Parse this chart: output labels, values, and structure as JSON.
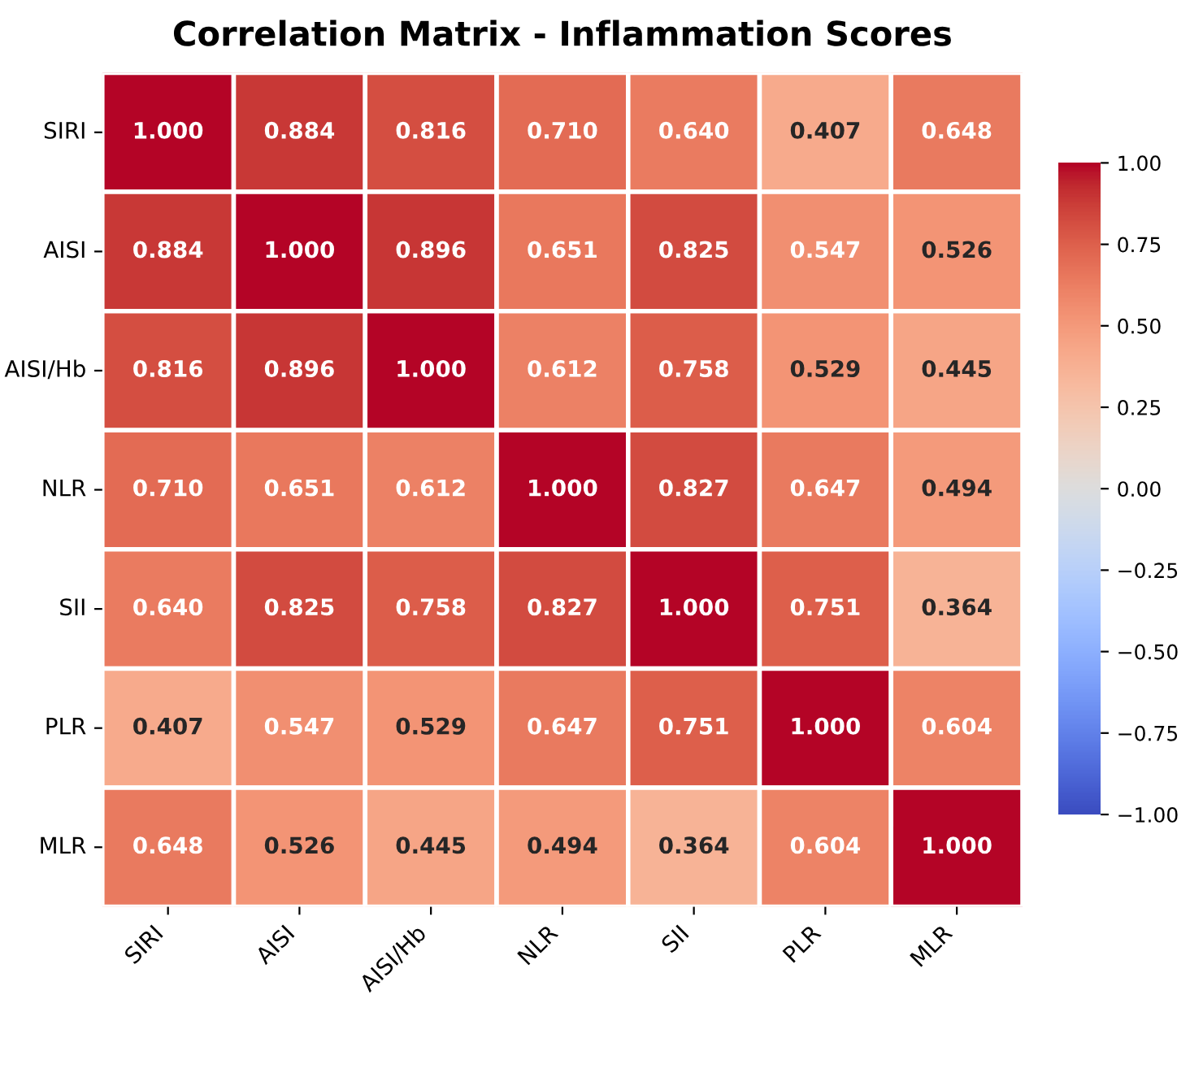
{
  "chart_data": {
    "type": "heatmap",
    "title": "Correlation Matrix - Inflammation Scores",
    "categories": [
      "SIRI",
      "AISI",
      "AISI/Hb",
      "NLR",
      "SII",
      "PLR",
      "MLR"
    ],
    "y_categories": [
      "SIRI",
      "AISI",
      "AISI/Hb",
      "NLR",
      "SII",
      "PLR",
      "MLR"
    ],
    "cells": [
      [
        1.0,
        0.884,
        0.816,
        0.71,
        0.64,
        0.407,
        0.648
      ],
      [
        0.884,
        1.0,
        0.896,
        0.651,
        0.825,
        0.547,
        0.526
      ],
      [
        0.816,
        0.896,
        1.0,
        0.612,
        0.758,
        0.529,
        0.445
      ],
      [
        0.71,
        0.651,
        0.612,
        1.0,
        0.827,
        0.647,
        0.494
      ],
      [
        0.64,
        0.825,
        0.758,
        0.827,
        1.0,
        0.751,
        0.364
      ],
      [
        0.407,
        0.547,
        0.529,
        0.647,
        0.751,
        1.0,
        0.604
      ],
      [
        0.648,
        0.526,
        0.445,
        0.494,
        0.364,
        0.604,
        1.0
      ]
    ],
    "cell_labels": [
      [
        "1.000",
        "0.884",
        "0.816",
        "0.710",
        "0.640",
        "0.407",
        "0.648"
      ],
      [
        "0.884",
        "1.000",
        "0.896",
        "0.651",
        "0.825",
        "0.547",
        "0.526"
      ],
      [
        "0.816",
        "0.896",
        "1.000",
        "0.612",
        "0.758",
        "0.529",
        "0.445"
      ],
      [
        "0.710",
        "0.651",
        "0.612",
        "1.000",
        "0.827",
        "0.647",
        "0.494"
      ],
      [
        "0.640",
        "0.825",
        "0.758",
        "0.827",
        "1.000",
        "0.751",
        "0.364"
      ],
      [
        "0.407",
        "0.547",
        "0.529",
        "0.647",
        "0.751",
        "1.000",
        "0.604"
      ],
      [
        "0.648",
        "0.526",
        "0.445",
        "0.494",
        "0.364",
        "0.604",
        "1.000"
      ]
    ],
    "clim": [
      -1,
      1
    ],
    "cticks": [
      {
        "value": -1,
        "label": "−1.00"
      },
      {
        "value": -0.75,
        "label": "−0.75"
      },
      {
        "value": -0.5,
        "label": "−0.50"
      },
      {
        "value": -0.25,
        "label": "−0.25"
      },
      {
        "value": 0,
        "label": "0.00"
      },
      {
        "value": 0.25,
        "label": "0.25"
      },
      {
        "value": 0.5,
        "label": "0.50"
      },
      {
        "value": 0.75,
        "label": "0.75"
      },
      {
        "value": 1,
        "label": "1.00"
      }
    ]
  }
}
